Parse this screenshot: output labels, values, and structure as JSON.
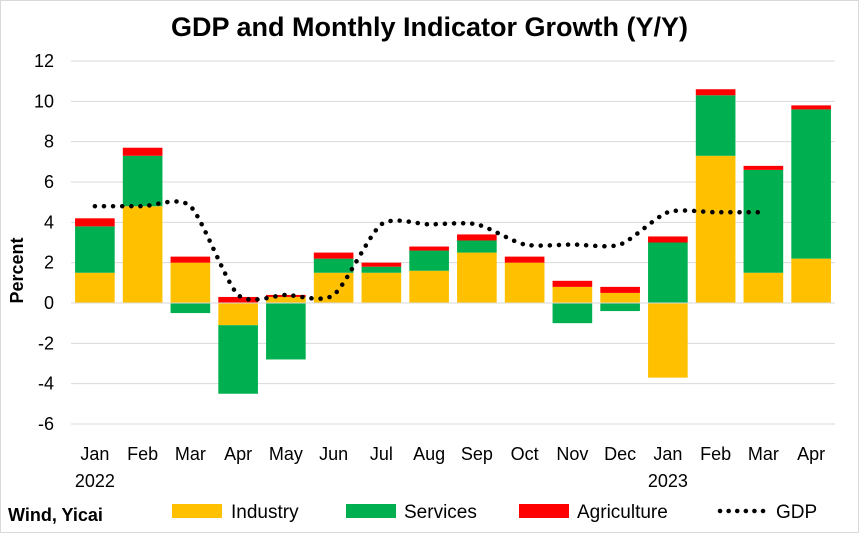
{
  "chart_data": {
    "type": "bar",
    "subtype": "stacked-bar-with-line",
    "title": "GDP and Monthly Indicator Growth (Y/Y)",
    "ylabel": "Percent",
    "xlabel": "",
    "ylim": [
      -6,
      12
    ],
    "yticks": [
      -6,
      -4,
      -2,
      0,
      2,
      4,
      6,
      8,
      10,
      12
    ],
    "grid": true,
    "legend_position": "bottom",
    "categories": [
      "Jan",
      "Feb",
      "Mar",
      "Apr",
      "May",
      "Jun",
      "Jul",
      "Aug",
      "Sep",
      "Oct",
      "Nov",
      "Dec",
      "Jan",
      "Feb",
      "Mar",
      "Apr"
    ],
    "year_labels": [
      {
        "index": 0,
        "label": "2022"
      },
      {
        "index": 12,
        "label": "2023"
      }
    ],
    "series": [
      {
        "name": "Industry",
        "kind": "bar",
        "color": "#ffc000",
        "values": [
          1.5,
          4.8,
          2.0,
          -1.1,
          0.3,
          1.5,
          1.5,
          1.6,
          2.5,
          2.0,
          0.8,
          0.5,
          -3.7,
          7.3,
          1.5,
          2.2
        ]
      },
      {
        "name": "Services",
        "kind": "bar",
        "color": "#00b050",
        "values": [
          2.3,
          2.5,
          -0.5,
          -3.4,
          -2.8,
          0.7,
          0.3,
          1.0,
          0.6,
          0.0,
          -1.0,
          -0.4,
          3.0,
          3.0,
          5.1,
          7.4
        ]
      },
      {
        "name": "Agriculture",
        "kind": "bar",
        "color": "#ff0000",
        "values": [
          0.4,
          0.4,
          0.3,
          0.3,
          0.1,
          0.3,
          0.2,
          0.2,
          0.3,
          0.3,
          0.3,
          0.3,
          0.3,
          0.3,
          0.2,
          0.2
        ]
      },
      {
        "name": "GDP",
        "kind": "line",
        "style": "dotted",
        "color": "#000000",
        "values": [
          4.8,
          4.8,
          4.8,
          0.4,
          0.4,
          0.4,
          3.9,
          3.9,
          3.9,
          2.9,
          2.9,
          2.9,
          4.5,
          4.5,
          4.5,
          null
        ]
      }
    ]
  },
  "source": "Wind, Yicai"
}
